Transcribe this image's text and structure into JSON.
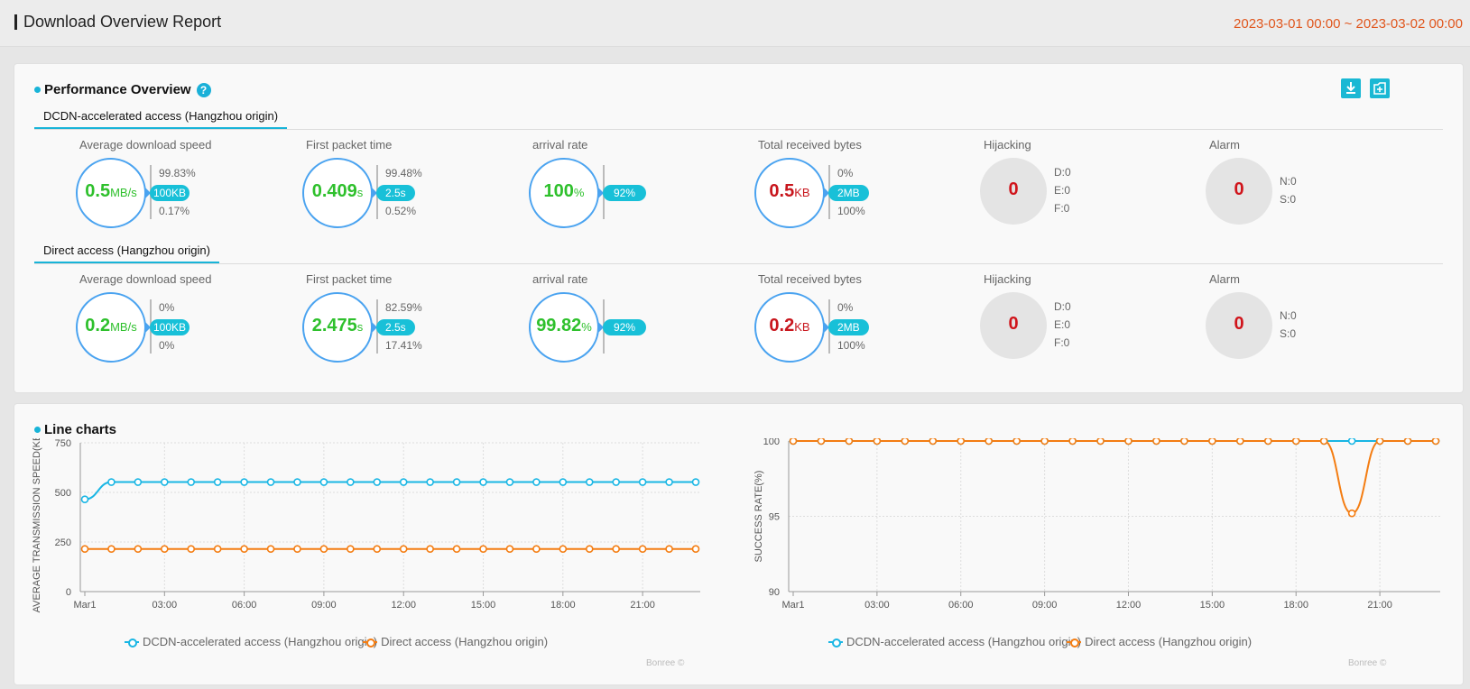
{
  "header": {
    "title": "Download Overview Report",
    "range": "2023-03-01 00:00 ~ 2023-03-02 00:00"
  },
  "perf": {
    "title": "Performance Overview",
    "help": "?",
    "download_icon": "download-icon",
    "export_icon": "export-icon",
    "sections": [
      {
        "tab": "DCDN-accelerated access (Hangzhou origin)",
        "metrics": [
          {
            "label": "Average download speed",
            "value": "0.5",
            "unit": "MB/s",
            "color": "green",
            "top_pct": "99.83%",
            "badge": "100KB",
            "bottom_pct": "0.17%"
          },
          {
            "label": "First packet time",
            "value": "0.409",
            "unit": "s",
            "color": "green",
            "top_pct": "99.48%",
            "badge": "2.5s",
            "bottom_pct": "0.52%"
          },
          {
            "label": "arrival rate",
            "value": "100",
            "unit": "%",
            "color": "green",
            "top_pct": "",
            "badge": "92%",
            "bottom_pct": ""
          },
          {
            "label": "Total received bytes",
            "value": "0.5",
            "unit": "KB",
            "color": "red",
            "top_pct": "0%",
            "badge": "2MB",
            "bottom_pct": "100%"
          }
        ],
        "hijacking": {
          "label": "Hijacking",
          "value": "0",
          "d": "D:0",
          "e": "E:0",
          "f": "F:0"
        },
        "alarm": {
          "label": "Alarm",
          "value": "0",
          "n": "N:0",
          "s": "S:0"
        }
      },
      {
        "tab": "Direct access (Hangzhou origin)",
        "metrics": [
          {
            "label": "Average download speed",
            "value": "0.2",
            "unit": "MB/s",
            "color": "green",
            "top_pct": "0%",
            "badge": "100KB",
            "bottom_pct": "0%"
          },
          {
            "label": "First packet time",
            "value": "2.475",
            "unit": "s",
            "color": "green",
            "top_pct": "82.59%",
            "badge": "2.5s",
            "bottom_pct": "17.41%"
          },
          {
            "label": "arrival rate",
            "value": "99.82",
            "unit": "%",
            "color": "green",
            "top_pct": "",
            "badge": "92%",
            "bottom_pct": ""
          },
          {
            "label": "Total received bytes",
            "value": "0.2",
            "unit": "KB",
            "color": "red",
            "top_pct": "0%",
            "badge": "2MB",
            "bottom_pct": "100%"
          }
        ],
        "hijacking": {
          "label": "Hijacking",
          "value": "0",
          "d": "D:0",
          "e": "E:0",
          "f": "F:0"
        },
        "alarm": {
          "label": "Alarm",
          "value": "0",
          "n": "N:0",
          "s": "S:0"
        }
      }
    ]
  },
  "charts_panel": {
    "title": "Line charts",
    "credit": "Bonree ©"
  },
  "chart_data": [
    {
      "type": "line",
      "title": "",
      "ylabel": "AVERAGE TRANSMISSION SPEED(KB/S)",
      "xlabel": "",
      "ylim": [
        0,
        750
      ],
      "yticks": [
        "0",
        "250",
        "500",
        "750"
      ],
      "xticks": [
        "Mar1",
        "03:00",
        "06:00",
        "09:00",
        "12:00",
        "15:00",
        "18:00",
        "21:00"
      ],
      "x": [
        0,
        1,
        2,
        3,
        4,
        5,
        6,
        7,
        8,
        9,
        10,
        11,
        12,
        13,
        14,
        15,
        16,
        17,
        18,
        19,
        20,
        21,
        22,
        23
      ],
      "series": [
        {
          "name": "DCDN-accelerated access (Hangzhou origin)",
          "color": "#19b6e4",
          "values": [
            465,
            552,
            552,
            552,
            552,
            552,
            552,
            552,
            552,
            552,
            552,
            552,
            552,
            552,
            552,
            552,
            552,
            552,
            552,
            552,
            552,
            552,
            552,
            552
          ]
        },
        {
          "name": "Direct access (Hangzhou origin)",
          "color": "#f47d12",
          "values": [
            215,
            215,
            215,
            215,
            215,
            215,
            215,
            215,
            215,
            215,
            215,
            215,
            215,
            215,
            215,
            215,
            215,
            215,
            215,
            215,
            215,
            215,
            215,
            215
          ]
        }
      ]
    },
    {
      "type": "line",
      "title": "",
      "ylabel": "SUCCESS RATE(%)",
      "xlabel": "",
      "ylim": [
        90,
        100
      ],
      "yticks": [
        "90",
        "95",
        "100"
      ],
      "xticks": [
        "Mar1",
        "03:00",
        "06:00",
        "09:00",
        "12:00",
        "15:00",
        "18:00",
        "21:00"
      ],
      "x": [
        0,
        1,
        2,
        3,
        4,
        5,
        6,
        7,
        8,
        9,
        10,
        11,
        12,
        13,
        14,
        15,
        16,
        17,
        18,
        19,
        20,
        21,
        22,
        23
      ],
      "series": [
        {
          "name": "DCDN-accelerated access (Hangzhou origin)",
          "color": "#19b6e4",
          "values": [
            100,
            100,
            100,
            100,
            100,
            100,
            100,
            100,
            100,
            100,
            100,
            100,
            100,
            100,
            100,
            100,
            100,
            100,
            100,
            100,
            100,
            100,
            100,
            100
          ]
        },
        {
          "name": "Direct access (Hangzhou origin)",
          "color": "#f47d12",
          "values": [
            100,
            100,
            100,
            100,
            100,
            100,
            100,
            100,
            100,
            100,
            100,
            100,
            100,
            100,
            100,
            100,
            100,
            100,
            100,
            100,
            95.2,
            100,
            100,
            100
          ]
        }
      ]
    }
  ]
}
